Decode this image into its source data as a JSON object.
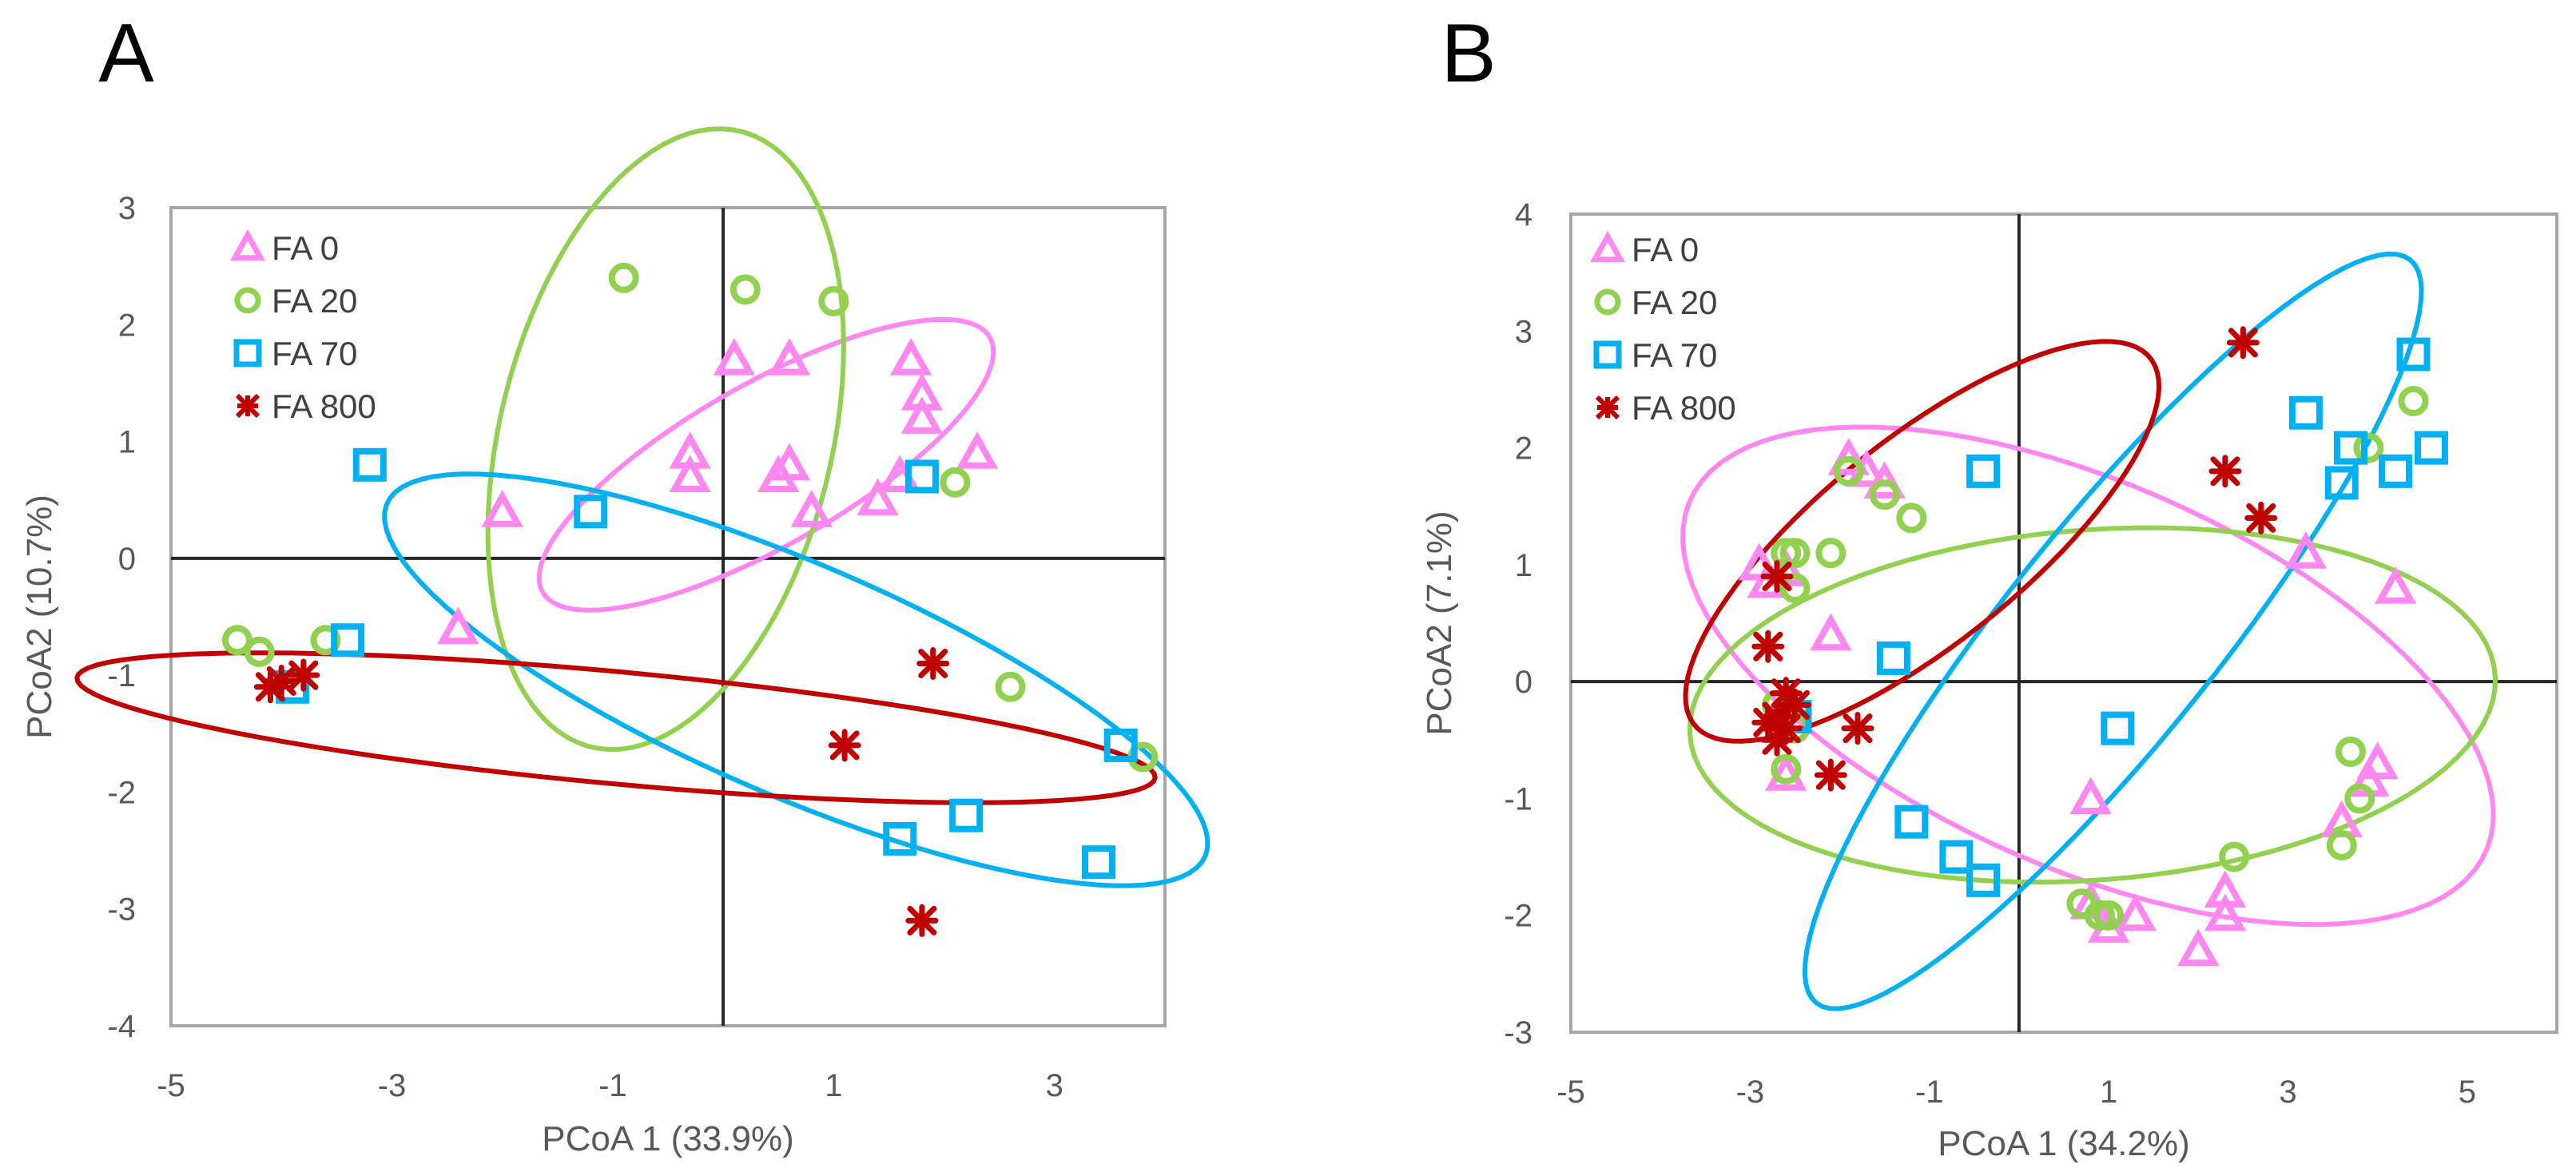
{
  "chart_data": [
    {
      "panel": "A",
      "type": "scatter",
      "xlabel": "PCoA 1 (33.9%)",
      "ylabel": "PCoA2 (10.7%)",
      "xlim": [
        -5,
        4
      ],
      "ylim": [
        -4,
        3
      ],
      "xticks": [
        -5,
        -3,
        -1,
        1,
        3
      ],
      "yticks": [
        3,
        2,
        1,
        0,
        -1,
        -2,
        -3,
        -4
      ],
      "legend_position": "top-left",
      "series": [
        {
          "name": "FA 0",
          "marker": "triangle",
          "color": "#FF88F0",
          "points": [
            [
              0.1,
              1.7
            ],
            [
              0.6,
              1.7
            ],
            [
              1.7,
              1.7
            ],
            [
              1.8,
              1.4
            ],
            [
              1.8,
              1.2
            ],
            [
              2.3,
              0.9
            ],
            [
              -0.3,
              0.9
            ],
            [
              -0.3,
              0.7
            ],
            [
              0.5,
              0.7
            ],
            [
              0.6,
              0.8
            ],
            [
              0.8,
              0.4
            ],
            [
              1.4,
              0.5
            ],
            [
              1.6,
              0.7
            ],
            [
              -2.0,
              0.4
            ],
            [
              -2.4,
              -0.6
            ]
          ]
        },
        {
          "name": "FA 20",
          "marker": "circle",
          "color": "#92D050",
          "points": [
            [
              -0.9,
              2.4
            ],
            [
              0.2,
              2.3
            ],
            [
              1.0,
              2.2
            ],
            [
              2.1,
              0.65
            ],
            [
              -4.4,
              -0.7
            ],
            [
              -4.2,
              -0.8
            ],
            [
              -3.6,
              -0.7
            ],
            [
              2.6,
              -1.1
            ],
            [
              3.8,
              -1.7
            ]
          ]
        },
        {
          "name": "FA 70",
          "marker": "square",
          "color": "#00B0F0",
          "points": [
            [
              -3.2,
              0.8
            ],
            [
              -1.2,
              0.4
            ],
            [
              1.8,
              0.7
            ],
            [
              -3.4,
              -0.7
            ],
            [
              -3.9,
              -1.1
            ],
            [
              3.6,
              -1.6
            ],
            [
              2.2,
              -2.2
            ],
            [
              1.6,
              -2.4
            ],
            [
              3.4,
              -2.6
            ]
          ]
        },
        {
          "name": "FA 800",
          "marker": "x",
          "color": "#C00000",
          "points": [
            [
              -4.0,
              -1.05
            ],
            [
              -4.1,
              -1.1
            ],
            [
              -3.8,
              -1.0
            ],
            [
              1.9,
              -0.9
            ],
            [
              1.1,
              -1.6
            ],
            [
              1.8,
              -3.1
            ]
          ]
        }
      ],
      "ellipses": [
        {
          "series": "FA 0",
          "color": "#FF88F0",
          "cx": 0.39,
          "cy": 0.8,
          "rx": 2.3,
          "ry": 0.7,
          "angle_deg": 28
        },
        {
          "series": "FA 20",
          "color": "#92D050",
          "cx": -0.52,
          "cy": 1.02,
          "rx": 2.72,
          "ry": 1.5,
          "angle_deg": 75
        },
        {
          "series": "FA 70",
          "color": "#00B0F0",
          "cx": 0.66,
          "cy": -1.04,
          "rx": 4.0,
          "ry": 1.0,
          "angle_deg": -22
        },
        {
          "series": "FA 800",
          "color": "#C00000",
          "cx": -0.97,
          "cy": -1.45,
          "rx": 4.9,
          "ry": 0.48,
          "angle_deg": -5
        }
      ]
    },
    {
      "panel": "B",
      "type": "scatter",
      "xlabel": "PCoA 1 (34.2%)",
      "ylabel": "PCoA2 (7.1%)",
      "xlim": [
        -5,
        6
      ],
      "ylim": [
        -3,
        4
      ],
      "xticks": [
        -5,
        -3,
        -1,
        1,
        3,
        5
      ],
      "yticks": [
        4,
        3,
        2,
        1,
        0,
        -1,
        -2,
        -3
      ],
      "legend_position": "top-left",
      "series": [
        {
          "name": "FA 0",
          "marker": "triangle",
          "color": "#FF88F0",
          "points": [
            [
              -1.9,
              1.9
            ],
            [
              -1.7,
              1.8
            ],
            [
              -1.5,
              1.7
            ],
            [
              -2.9,
              1.0
            ],
            [
              -2.8,
              0.85
            ],
            [
              -2.6,
              0.95
            ],
            [
              -2.1,
              0.4
            ],
            [
              3.2,
              1.1
            ],
            [
              4.2,
              0.8
            ],
            [
              4.0,
              -0.7
            ],
            [
              3.9,
              -0.85
            ],
            [
              3.6,
              -1.2
            ],
            [
              0.8,
              -1.0
            ],
            [
              0.8,
              -1.9
            ],
            [
              1.0,
              -2.1
            ],
            [
              1.3,
              -2.0
            ],
            [
              2.3,
              -1.8
            ],
            [
              2.3,
              -2.0
            ],
            [
              2.0,
              -2.3
            ],
            [
              -2.6,
              -0.8
            ]
          ]
        },
        {
          "name": "FA 20",
          "marker": "circle",
          "color": "#92D050",
          "points": [
            [
              -1.9,
              1.8
            ],
            [
              -1.5,
              1.6
            ],
            [
              -1.2,
              1.4
            ],
            [
              -2.1,
              1.1
            ],
            [
              -2.6,
              1.1
            ],
            [
              -2.5,
              1.1
            ],
            [
              -2.5,
              0.8
            ],
            [
              -2.7,
              -0.2
            ],
            [
              -2.5,
              -0.4
            ],
            [
              -2.6,
              -0.75
            ],
            [
              4.4,
              2.4
            ],
            [
              3.9,
              2.0
            ],
            [
              3.7,
              -0.6
            ],
            [
              3.8,
              -1.0
            ],
            [
              3.6,
              -1.4
            ],
            [
              2.4,
              -1.5
            ],
            [
              0.7,
              -1.9
            ],
            [
              0.9,
              -2.0
            ],
            [
              1.0,
              -2.0
            ]
          ]
        },
        {
          "name": "FA 70",
          "marker": "square",
          "color": "#00B0F0",
          "points": [
            [
              4.4,
              2.8
            ],
            [
              3.2,
              2.3
            ],
            [
              3.7,
              2.0
            ],
            [
              4.6,
              2.0
            ],
            [
              3.6,
              1.7
            ],
            [
              4.2,
              1.8
            ],
            [
              -0.4,
              1.8
            ],
            [
              -1.4,
              0.2
            ],
            [
              1.1,
              -0.4
            ],
            [
              -2.5,
              -0.3
            ],
            [
              -1.2,
              -1.2
            ],
            [
              -0.7,
              -1.5
            ],
            [
              -0.4,
              -1.7
            ]
          ]
        },
        {
          "name": "FA 800",
          "marker": "x",
          "color": "#C00000",
          "points": [
            [
              2.5,
              2.9
            ],
            [
              2.3,
              1.8
            ],
            [
              2.7,
              1.4
            ],
            [
              -2.7,
              0.9
            ],
            [
              -2.8,
              0.3
            ],
            [
              -2.6,
              -0.1
            ],
            [
              -2.5,
              -0.2
            ],
            [
              -2.7,
              -0.3
            ],
            [
              -2.6,
              -0.4
            ],
            [
              -2.8,
              -0.35
            ],
            [
              -2.7,
              -0.5
            ],
            [
              -1.8,
              -0.4
            ],
            [
              -2.1,
              -0.8
            ]
          ]
        }
      ],
      "ellipses": [
        {
          "series": "FA 0",
          "color": "#FF88F0",
          "cx": 0.77,
          "cy": 0.05,
          "rx": 4.7,
          "ry": 1.7,
          "angle_deg": -17
        },
        {
          "series": "FA 20",
          "color": "#92D050",
          "cx": 0.82,
          "cy": -0.2,
          "rx": 4.5,
          "ry": 1.5,
          "angle_deg": 3
        },
        {
          "series": "FA 70",
          "color": "#00B0F0",
          "cx": 1.05,
          "cy": 0.43,
          "rx": 4.6,
          "ry": 1.05,
          "angle_deg": 43
        },
        {
          "series": "FA 800",
          "color": "#C00000",
          "cx": -1.08,
          "cy": 1.2,
          "rx": 3.0,
          "ry": 0.95,
          "angle_deg": 30
        }
      ]
    }
  ]
}
